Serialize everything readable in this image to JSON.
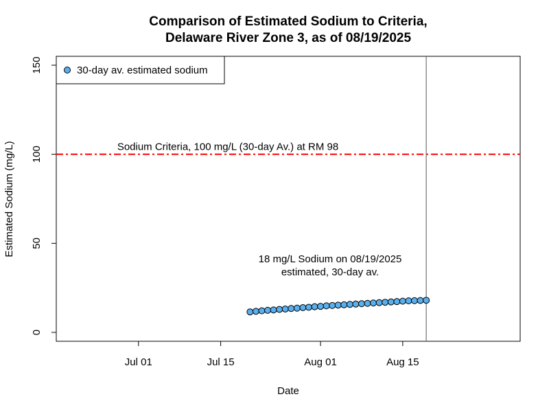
{
  "chart_data": {
    "type": "scatter",
    "title_line1": "Comparison of Estimated Sodium to Criteria,",
    "title_line2": "Delaware River Zone 3, as of 08/19/2025",
    "xlabel": "Date",
    "ylabel": "Estimated Sodium (mg/L)",
    "xlim": [
      "2025-06-17",
      "2025-09-04"
    ],
    "ylim": [
      -5,
      155
    ],
    "x_ticks": [
      {
        "date": "2025-07-01",
        "label": "Jul 01"
      },
      {
        "date": "2025-07-15",
        "label": "Jul 15"
      },
      {
        "date": "2025-08-01",
        "label": "Aug 01"
      },
      {
        "date": "2025-08-15",
        "label": "Aug 15"
      }
    ],
    "y_ticks": [
      0,
      50,
      100,
      150
    ],
    "criteria": {
      "value": 100,
      "color": "#ff0000",
      "label": "Sodium Criteria, 100 mg/L (30-day Av.) at RM 98"
    },
    "current_date_line": "2025-08-19",
    "annotation": {
      "line1": "18 mg/L Sodium on 08/19/2025",
      "line2": "estimated, 30-day av."
    },
    "legend": {
      "position": "top-left",
      "label": "30-day av. estimated sodium"
    },
    "series": [
      {
        "name": "30-day av. estimated sodium",
        "color": "#5aafed",
        "points": [
          {
            "x": "2025-07-20",
            "y": 11.5
          },
          {
            "x": "2025-07-21",
            "y": 11.8
          },
          {
            "x": "2025-07-22",
            "y": 12.1
          },
          {
            "x": "2025-07-23",
            "y": 12.4
          },
          {
            "x": "2025-07-24",
            "y": 12.6
          },
          {
            "x": "2025-07-25",
            "y": 12.9
          },
          {
            "x": "2025-07-26",
            "y": 13.1
          },
          {
            "x": "2025-07-27",
            "y": 13.4
          },
          {
            "x": "2025-07-28",
            "y": 13.6
          },
          {
            "x": "2025-07-29",
            "y": 13.9
          },
          {
            "x": "2025-07-30",
            "y": 14.1
          },
          {
            "x": "2025-07-31",
            "y": 14.4
          },
          {
            "x": "2025-08-01",
            "y": 14.6
          },
          {
            "x": "2025-08-02",
            "y": 14.9
          },
          {
            "x": "2025-08-03",
            "y": 15.1
          },
          {
            "x": "2025-08-04",
            "y": 15.3
          },
          {
            "x": "2025-08-05",
            "y": 15.5
          },
          {
            "x": "2025-08-06",
            "y": 15.7
          },
          {
            "x": "2025-08-07",
            "y": 15.9
          },
          {
            "x": "2025-08-08",
            "y": 16.1
          },
          {
            "x": "2025-08-09",
            "y": 16.3
          },
          {
            "x": "2025-08-10",
            "y": 16.5
          },
          {
            "x": "2025-08-11",
            "y": 16.7
          },
          {
            "x": "2025-08-12",
            "y": 16.9
          },
          {
            "x": "2025-08-13",
            "y": 17.1
          },
          {
            "x": "2025-08-14",
            "y": 17.3
          },
          {
            "x": "2025-08-15",
            "y": 17.5
          },
          {
            "x": "2025-08-16",
            "y": 17.7
          },
          {
            "x": "2025-08-17",
            "y": 17.8
          },
          {
            "x": "2025-08-18",
            "y": 17.9
          },
          {
            "x": "2025-08-19",
            "y": 18.0
          }
        ]
      }
    ]
  }
}
